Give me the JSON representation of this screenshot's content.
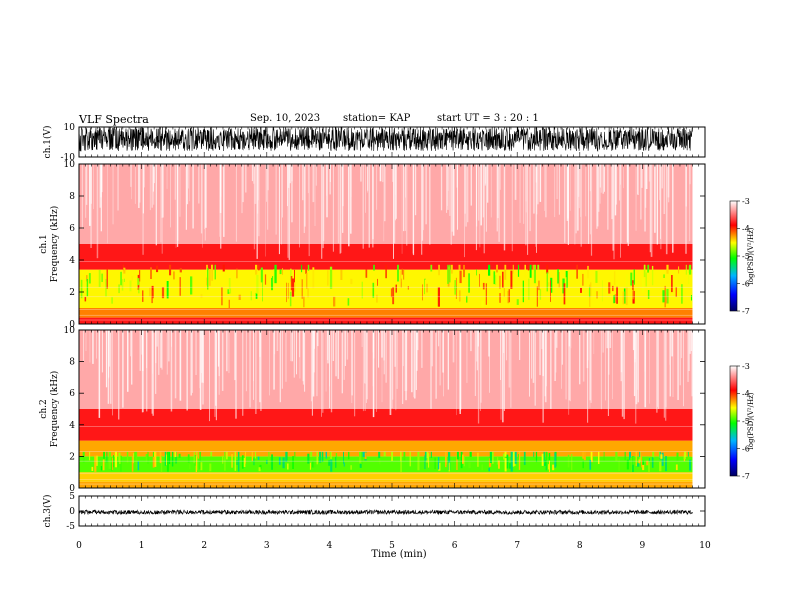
{
  "header": {
    "title": "VLF Spectra",
    "date": "Sep. 10, 2023",
    "station": "station= KAP",
    "start_ut": "start UT = 3 : 20 : 1"
  },
  "colors": {
    "waveform": "#000000",
    "background": "#ffffff",
    "colormap": [
      "#000080",
      "#0000ff",
      "#00b4ff",
      "#00ff00",
      "#ffff00",
      "#ff0000",
      "#ffffff"
    ]
  },
  "chart_data": [
    {
      "type": "line",
      "id": "ch1-waveform",
      "ylabel": "ch.1(V)",
      "ylim": [
        -10,
        10
      ],
      "ytick_labels": [
        "10",
        "-10"
      ],
      "xlim": [
        0,
        10
      ],
      "data_extent_min": 9.8,
      "description_values": {
        "typical_min": -6,
        "typical_max": 10
      }
    },
    {
      "type": "heatmap",
      "id": "ch1-spectrogram",
      "ylabel": "ch.1\nFrequency (kHz)",
      "ylim": [
        0,
        10
      ],
      "ytick_labels": [
        "0",
        "2",
        "4",
        "6",
        "8",
        "10"
      ],
      "xlim": [
        0,
        10
      ],
      "data_extent_min": 9.8,
      "colorbar": {
        "label": "log(PSD)(V²/Hz)",
        "range": [
          -7,
          -3
        ],
        "tick_labels": [
          "-3",
          "-4",
          "-5",
          "-6",
          "-7"
        ]
      },
      "level_profile": [
        {
          "f_khz": [
            0.0,
            0.4
          ],
          "log_psd": -3.8
        },
        {
          "f_khz": [
            0.4,
            1.0
          ],
          "log_psd": -4.2
        },
        {
          "f_khz": [
            1.0,
            3.4
          ],
          "log_psd": -4.5
        },
        {
          "f_khz": [
            3.4,
            5.0
          ],
          "log_psd": -3.8
        },
        {
          "f_khz": [
            5.0,
            10.0
          ],
          "log_psd": -3.3
        }
      ]
    },
    {
      "type": "heatmap",
      "id": "ch2-spectrogram",
      "ylabel": "ch.2\nFrequency (kHz)",
      "ylim": [
        0,
        10
      ],
      "ytick_labels": [
        "0",
        "2",
        "4",
        "6",
        "8",
        "10"
      ],
      "xlim": [
        0,
        10
      ],
      "data_extent_min": 9.8,
      "colorbar": {
        "label": "log(PSD)(V²/Hz)",
        "range": [
          -7,
          -3
        ],
        "tick_labels": [
          "-3",
          "-4",
          "-5",
          "-6",
          "-7"
        ]
      },
      "level_profile": [
        {
          "f_khz": [
            0.0,
            0.4
          ],
          "log_psd": -4.3
        },
        {
          "f_khz": [
            0.4,
            1.0
          ],
          "log_psd": -4.4
        },
        {
          "f_khz": [
            1.0,
            2.0
          ],
          "log_psd": -4.9
        },
        {
          "f_khz": [
            2.0,
            3.0
          ],
          "log_psd": -4.3
        },
        {
          "f_khz": [
            3.0,
            5.0
          ],
          "log_psd": -3.8
        },
        {
          "f_khz": [
            5.0,
            10.0
          ],
          "log_psd": -3.3
        }
      ]
    },
    {
      "type": "line",
      "id": "ch3-waveform",
      "ylabel": "ch.3(V)",
      "ylim": [
        -5,
        5
      ],
      "ytick_labels": [
        "5",
        "0",
        "-5"
      ],
      "xlim": [
        0,
        10
      ],
      "data_extent_min": 9.8,
      "description_values": {
        "typical_min": -0.7,
        "typical_max": 0.7,
        "mean": -0.4
      }
    }
  ],
  "x_axis": {
    "label": "Time (min)",
    "tick_labels": [
      "0",
      "1",
      "2",
      "3",
      "4",
      "5",
      "6",
      "7",
      "8",
      "9",
      "10"
    ]
  }
}
